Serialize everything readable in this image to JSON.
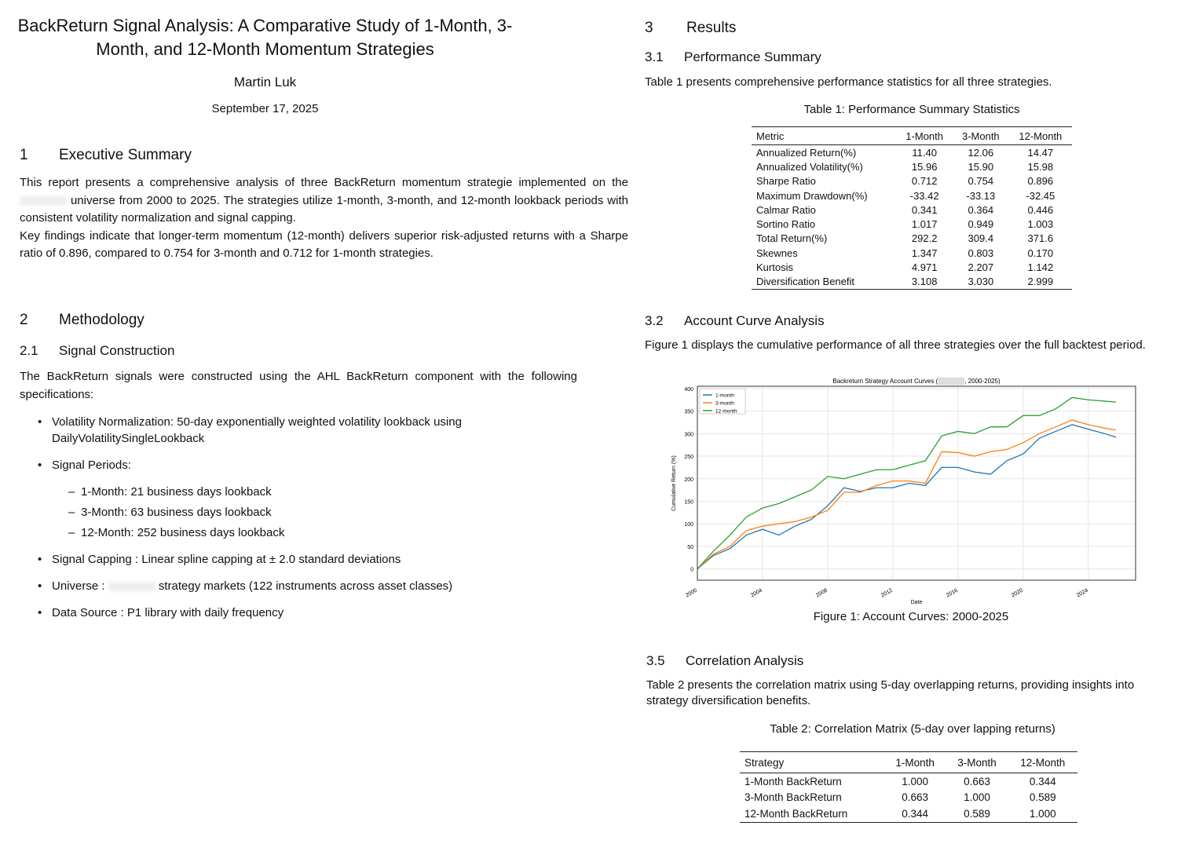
{
  "title": "BackReturn Signal Analysis: A Comparative Study of 1-Month, 3-Month, and 12-Month Momentum Strategies",
  "author": "Martin Luk",
  "date": "September 17, 2025",
  "s1": {
    "num": "1",
    "title": "Executive Summary",
    "p1a": "This report presents a comprehensive analysis of three BackReturn momentum strategie implemented on the",
    "p1b": "universe from 2000 to 2025. The strategies utilize 1-month, 3-month, and 12-month lookback periods with consistent volatility normalization and signal capping.",
    "p2": "Key findings indicate that longer-term momentum (12-month) delivers superior risk-adjusted returns with a Sharpe ratio of 0.896, compared to 0.754 for 3-month and 0.712 for 1-month strategies."
  },
  "s2": {
    "num": "2",
    "title": "Methodology",
    "s21num": "2.1",
    "s21title": "Signal Construction",
    "intro": "The BackReturn signals were constructed using the AHL BackReturn component with the following specifications:",
    "b1": "Volatility Normalization: 50-day exponentially weighted volatility lookback using DailyVolatilitySingleLookback",
    "b2": "Signal Periods:",
    "d1": "1-Month: 21 business days lookback",
    "d2": "3-Month: 63 business days lookback",
    "d3": "12-Month: 252 business days lookback",
    "b3": "Signal Capping : Linear spline capping at ± 2.0 standard deviations",
    "b4a": "Universe :",
    "b4b": "strategy markets (122 instruments across asset classes)",
    "b5": "Data Source : P1 library with daily frequency"
  },
  "s3": {
    "num": "3",
    "title": "Results",
    "s31num": "3.1",
    "s31title": "Performance Summary",
    "s31text": "Table 1 presents comprehensive performance statistics for all three strategies.",
    "table1": {
      "caption": "Table 1: Performance Summary Statistics",
      "headers": [
        "Metric",
        "1-Month",
        "3-Month",
        "12-Month"
      ],
      "rows": [
        [
          "Annualized Return(%)",
          "11.40",
          "12.06",
          "14.47"
        ],
        [
          "Annualized Volatility(%)",
          "15.96",
          "15.90",
          "15.98"
        ],
        [
          "Sharpe Ratio",
          "0.712",
          "0.754",
          "0.896"
        ],
        [
          "Maximum Drawdown(%)",
          "-33.42",
          "-33.13",
          "-32.45"
        ],
        [
          "Calmar Ratio",
          "0.341",
          "0.364",
          "0.446"
        ],
        [
          "Sortino Ratio",
          "1.017",
          "0.949",
          "1.003"
        ],
        [
          "Total Return(%)",
          "292.2",
          "309.4",
          "371.6"
        ],
        [
          "Skewnes",
          "1.347",
          "0.803",
          "0.170"
        ],
        [
          "Kurtosis",
          "4.971",
          "2.207",
          "1.142"
        ],
        [
          "Diversification Benefit",
          "3.108",
          "3.030",
          "2.999"
        ]
      ]
    },
    "s32num": "3.2",
    "s32title": "Account Curve Analysis",
    "s32text": "Figure 1 displays the cumulative performance of all three strategies over the full backtest period.",
    "fig_caption": "Figure 1: Account Curves: 2000-2025",
    "s35num": "3.5",
    "s35title": "Correlation Analysis",
    "s35text": "Table 2 presents the correlation matrix using 5-day overlapping returns, providing insights into strategy diversification benefits.",
    "table2": {
      "caption": "Table 2: Correlation Matrix (5-day over lapping returns)",
      "headers": [
        "Strategy",
        "1-Month",
        "3-Month",
        "12-Month"
      ],
      "rows": [
        [
          "1-Month BackReturn",
          "1.000",
          "0.663",
          "0.344"
        ],
        [
          "3-Month BackReturn",
          "0.663",
          "1.000",
          "0.589"
        ],
        [
          "12-Month BackReturn",
          "0.344",
          "0.589",
          "1.000"
        ]
      ]
    }
  },
  "chart_data": {
    "type": "line",
    "title_a": "Backreturn Strategy Account Curves (",
    "title_b": ", 2000-2025)",
    "xlabel": "Date",
    "ylabel": "Cumulative Return (%)",
    "xlim": [
      2000,
      2026.9
    ],
    "ylim": [
      -25,
      405
    ],
    "xticks": [
      "2000",
      "2004",
      "2008",
      "2012",
      "2016",
      "2020",
      "2024"
    ],
    "yticks": [
      0,
      50,
      100,
      150,
      200,
      250,
      300,
      350,
      400
    ],
    "grid": true,
    "legend": "top-left",
    "x": [
      2000,
      2001,
      2002,
      2003,
      2004,
      2005,
      2006,
      2007,
      2008,
      2009,
      2010,
      2011,
      2012,
      2013,
      2014,
      2015,
      2016,
      2017,
      2018,
      2019,
      2020,
      2021,
      2022,
      2023,
      2024,
      2025,
      2025.7
    ],
    "series": [
      {
        "name": "1-month",
        "color": "#1f77b4",
        "values": [
          0,
          30,
          45,
          75,
          88,
          75,
          95,
          110,
          140,
          180,
          172,
          180,
          180,
          190,
          185,
          225,
          225,
          215,
          210,
          240,
          255,
          290,
          305,
          320,
          310,
          300,
          292
        ]
      },
      {
        "name": "3-month",
        "color": "#ff7f0e",
        "values": [
          0,
          33,
          50,
          85,
          95,
          100,
          105,
          115,
          130,
          170,
          170,
          185,
          195,
          195,
          190,
          260,
          258,
          250,
          260,
          265,
          280,
          300,
          315,
          330,
          320,
          312,
          308
        ]
      },
      {
        "name": "12-month",
        "color": "#2ca02c",
        "values": [
          0,
          40,
          75,
          115,
          135,
          145,
          160,
          175,
          205,
          200,
          210,
          220,
          220,
          230,
          240,
          295,
          305,
          300,
          315,
          315,
          340,
          340,
          355,
          380,
          375,
          372,
          370
        ]
      }
    ]
  }
}
